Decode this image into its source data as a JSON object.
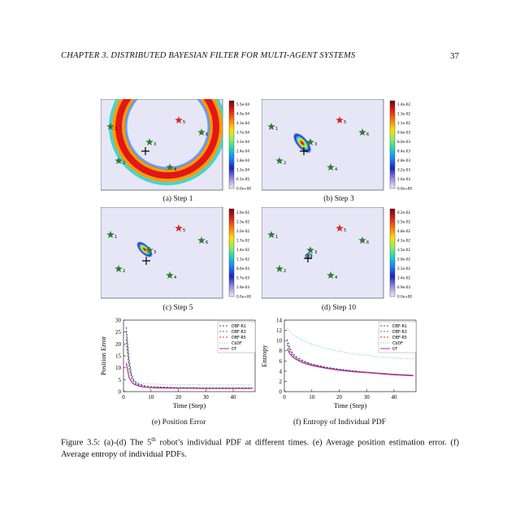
{
  "page": {
    "header": "CHAPTER 3.  DISTRIBUTED BAYESIAN FILTER FOR MULTI-AGENT SYSTEMS",
    "page_number": "37"
  },
  "panels": [
    {
      "caption": "(a) Step 1",
      "colorbar": [
        "5.5e-04",
        "4.9e-04",
        "4.3e-04",
        "3.7e-04",
        "3.1e-04",
        "2.4e-04",
        "1.8e-04",
        "1.2e-04",
        "6.1e-05",
        "0.0e+00"
      ]
    },
    {
      "caption": "(b) Step 3",
      "colorbar": [
        "1.4e-02",
        "1.3e-02",
        "1.1e-02",
        "9.6e-03",
        "8.0e-03",
        "6.4e-03",
        "4.8e-03",
        "3.2e-03",
        "1.6e-03",
        "0.0e+00"
      ]
    },
    {
      "caption": "(c) Step 5",
      "colorbar": [
        "2.6e-02",
        "2.3e-02",
        "2.0e-02",
        "1.7e-02",
        "1.4e-02",
        "1.1e-02",
        "8.6e-03",
        "5.7e-03",
        "2.9e-03",
        "0.0e+00"
      ]
    },
    {
      "caption": "(d) Step 10",
      "colorbar": [
        "6.2e-02",
        "5.5e-02",
        "4.8e-02",
        "4.1e-02",
        "3.5e-02",
        "2.8e-02",
        "2.1e-02",
        "1.4e-02",
        "6.9e-03",
        "0.0e+00"
      ]
    }
  ],
  "agent_labels": [
    "1",
    "2",
    "3",
    "4",
    "5",
    "6"
  ],
  "legend": [
    "DBF-R1",
    "DBF-R3",
    "DBF-R5",
    "CbDF",
    "CF"
  ],
  "chart_data": [
    {
      "type": "line",
      "caption": "(e) Position Error",
      "xlabel": "Time (Step)",
      "ylabel": "Position Error",
      "xlim": [
        0,
        48
      ],
      "ylim": [
        0,
        30
      ],
      "xticks": [
        0,
        10,
        20,
        30,
        40
      ],
      "yticks": [
        0,
        5,
        10,
        15,
        20,
        25,
        30
      ],
      "x": [
        1,
        2,
        3,
        4,
        6,
        8,
        10,
        15,
        20,
        25,
        30,
        35,
        40,
        47
      ],
      "series": [
        {
          "name": "DBF-R1",
          "color": "#1f3fbf",
          "dash": "2,2",
          "values": [
            27,
            14,
            7,
            4.5,
            3,
            2.4,
            2.0,
            1.8,
            1.6,
            1.6,
            1.5,
            1.5,
            1.5,
            1.5
          ]
        },
        {
          "name": "DBF-R3",
          "color": "#3a8a3a",
          "dash": "2,2",
          "values": [
            25,
            12,
            6,
            4,
            2.8,
            2.3,
            2.1,
            1.9,
            1.7,
            1.7,
            1.6,
            1.6,
            1.6,
            1.6
          ]
        },
        {
          "name": "DBF-R5",
          "color": "#c03030",
          "dash": "2,2",
          "values": [
            22,
            10,
            5.5,
            3.5,
            2.6,
            2.2,
            2.0,
            1.8,
            1.6,
            1.6,
            1.5,
            1.5,
            1.5,
            1.5
          ]
        },
        {
          "name": "CbDF",
          "color": "#56c8c8",
          "dash": "1,2",
          "values": [
            19,
            9,
            5,
            4,
            3.5,
            3.3,
            3.2,
            3.0,
            2.9,
            2.9,
            2.8,
            2.8,
            2.8,
            2.8
          ]
        },
        {
          "name": "CF",
          "color": "#b22ab2",
          "dash": "",
          "values": [
            12,
            6,
            4,
            3,
            2.2,
            1.8,
            1.6,
            1.5,
            1.4,
            1.4,
            1.3,
            1.3,
            1.3,
            1.3
          ]
        }
      ]
    },
    {
      "type": "line",
      "caption": "(f) Entropy of Individual PDF",
      "xlabel": "Time (Step)",
      "ylabel": "Entropy",
      "xlim": [
        0,
        48
      ],
      "ylim": [
        0,
        14
      ],
      "xticks": [
        0,
        10,
        20,
        30,
        40
      ],
      "yticks": [
        0,
        2,
        4,
        6,
        8,
        10,
        12,
        14
      ],
      "x": [
        1,
        2,
        3,
        4,
        6,
        8,
        10,
        15,
        20,
        25,
        30,
        35,
        40,
        47
      ],
      "series": [
        {
          "name": "DBF-R1",
          "color": "#1f3fbf",
          "dash": "2,2",
          "values": [
            10.2,
            8.6,
            7.6,
            7.0,
            6.3,
            5.8,
            5.4,
            4.8,
            4.4,
            4.1,
            3.8,
            3.6,
            3.4,
            3.2
          ]
        },
        {
          "name": "DBF-R3",
          "color": "#3a8a3a",
          "dash": "2,2",
          "values": [
            9.6,
            8.2,
            7.3,
            6.8,
            6.1,
            5.7,
            5.3,
            4.7,
            4.3,
            4.0,
            3.8,
            3.6,
            3.4,
            3.2
          ]
        },
        {
          "name": "DBF-R5",
          "color": "#c03030",
          "dash": "2,2",
          "values": [
            9.2,
            7.9,
            7.1,
            6.6,
            6.0,
            5.6,
            5.3,
            4.7,
            4.3,
            4.0,
            3.8,
            3.6,
            3.4,
            3.2
          ]
        },
        {
          "name": "CbDF",
          "color": "#56c8c8",
          "dash": "1,2",
          "values": [
            12.4,
            11.8,
            11.3,
            10.8,
            10.2,
            9.7,
            9.3,
            8.5,
            7.9,
            7.4,
            7.1,
            6.8,
            6.6,
            6.4
          ]
        },
        {
          "name": "CF",
          "color": "#b22ab2",
          "dash": "",
          "values": [
            8.4,
            7.4,
            6.8,
            6.4,
            5.8,
            5.4,
            5.1,
            4.6,
            4.2,
            3.9,
            3.7,
            3.5,
            3.3,
            3.1
          ]
        }
      ]
    }
  ],
  "figure_caption_parts": {
    "prefix": "Figure 3.5: (a)-(d) The 5",
    "sup": "th",
    "rest": " robot’s individual PDF at different times. (e) Average position estimation error. (f) Average entropy of individual PDFs."
  },
  "colors": {
    "map_bg": "#e6e6f7",
    "target_star": "#d62828",
    "agent_star": "#2e7d32"
  }
}
